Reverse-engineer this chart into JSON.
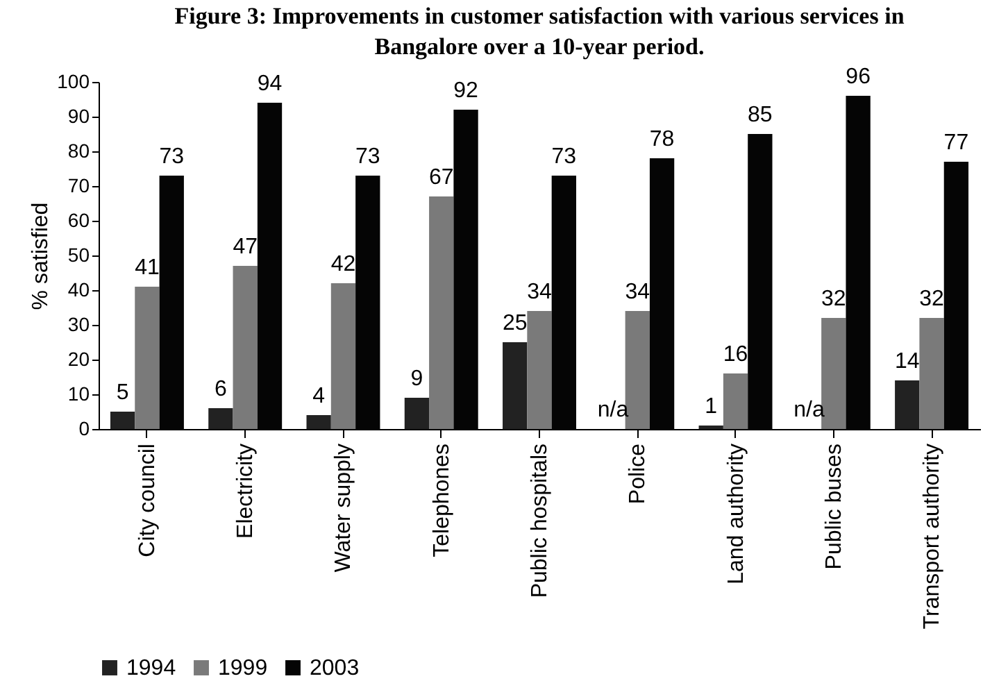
{
  "chart_data": {
    "type": "bar",
    "title": "Figure 3: Improvements in customer satisfaction with various services in Bangalore over a 10-year period.",
    "ylabel": "% satisfied",
    "categories": [
      "City council",
      "Electricity",
      "Water supply",
      "Telephones",
      "Public hospitals",
      "Police",
      "Land authority",
      "Public buses",
      "Transport authority"
    ],
    "series": [
      {
        "name": "1994",
        "color": "#222222",
        "values": [
          5,
          6,
          4,
          9,
          25,
          null,
          1,
          null,
          14
        ],
        "value_labels": [
          "5",
          "6",
          "4",
          "9",
          "25",
          "n/a",
          "1",
          "n/a",
          "14"
        ]
      },
      {
        "name": "1999",
        "color": "#7a7a7a",
        "values": [
          41,
          47,
          42,
          67,
          34,
          34,
          16,
          32,
          32
        ],
        "value_labels": [
          "41",
          "47",
          "42",
          "67",
          "34",
          "34",
          "16",
          "32",
          "32"
        ]
      },
      {
        "name": "2003",
        "color": "#050505",
        "values": [
          73,
          94,
          73,
          92,
          73,
          78,
          85,
          96,
          77
        ],
        "value_labels": [
          "73",
          "94",
          "73",
          "92",
          "73",
          "78",
          "85",
          "96",
          "77"
        ]
      }
    ],
    "ylim": [
      0,
      100
    ],
    "yticks": [
      0,
      10,
      20,
      30,
      40,
      50,
      60,
      70,
      80,
      90,
      100
    ],
    "legend": "bottom"
  }
}
